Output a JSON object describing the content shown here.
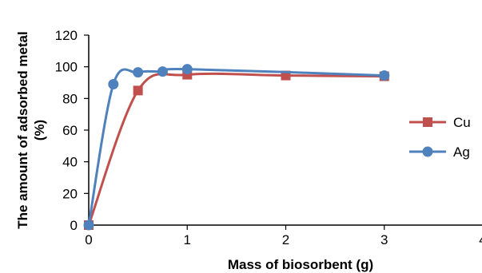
{
  "chart_data": {
    "type": "line",
    "xlabel": "Mass of biosorbent (g)",
    "ylabel_line1": "The amount  of adsorbed metal",
    "ylabel_line2": "(%)",
    "xlim": [
      0,
      4
    ],
    "ylim": [
      0,
      120
    ],
    "x_ticks": [
      "0",
      "1",
      "2",
      "3",
      "4"
    ],
    "y_ticks": [
      "0",
      "20",
      "40",
      "60",
      "80",
      "100",
      "120"
    ],
    "grid": false,
    "legend_position": "right",
    "smooth": true,
    "series": [
      {
        "name": "Cu",
        "color": "#c0504d",
        "marker": "square",
        "x": [
          0,
          0.5,
          1,
          2,
          3
        ],
        "y": [
          0,
          85,
          95,
          94.5,
          94
        ]
      },
      {
        "name": "Ag",
        "color": "#4f81bd",
        "marker": "circle",
        "x": [
          0,
          0.25,
          0.5,
          0.75,
          1,
          3
        ],
        "y": [
          0,
          89,
          96.5,
          97,
          98.5,
          94.5
        ]
      }
    ]
  }
}
